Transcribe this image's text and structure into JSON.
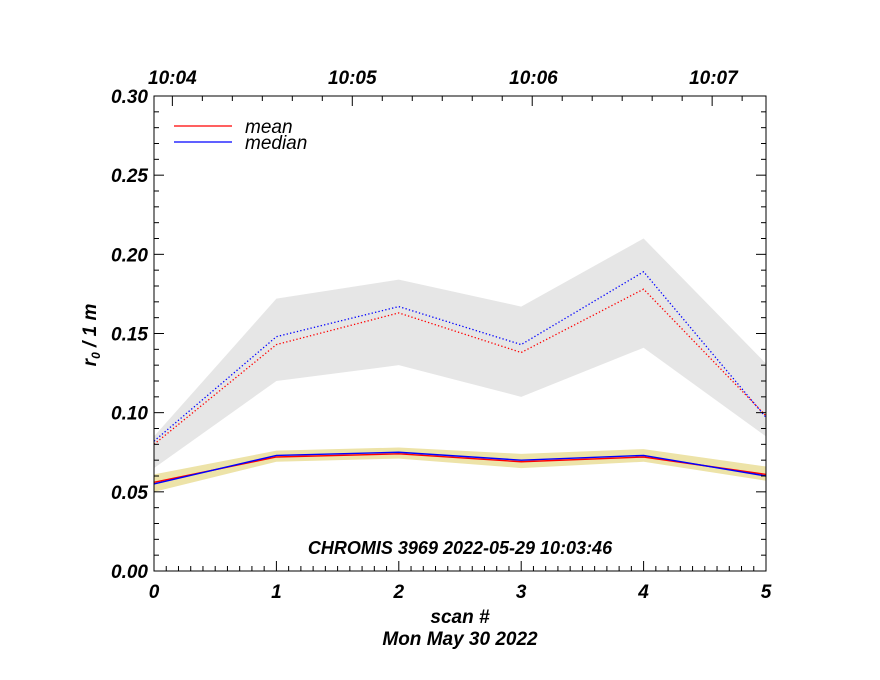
{
  "chart_data": {
    "type": "line",
    "x_label": "scan #",
    "date_label": "Mon May 30 2022",
    "y_label_main": "r",
    "y_label_sub": "0",
    "y_label_rest": " / 1 m",
    "annotation": "CHROMIS 3969 2022-05-29 10:03:46",
    "x_range": [
      0,
      5
    ],
    "y_range": [
      0.0,
      0.3
    ],
    "x_ticks": [
      "0",
      "1",
      "2",
      "3",
      "4",
      "5"
    ],
    "y_ticks": [
      "0.00",
      "0.05",
      "0.10",
      "0.15",
      "0.20",
      "0.25",
      "0.30"
    ],
    "top_axis_labels": [
      {
        "label": "10:04",
        "x": 0.15
      },
      {
        "label": "10:05",
        "x": 1.62
      },
      {
        "label": "10:06",
        "x": 3.1
      },
      {
        "label": "10:07",
        "x": 4.57
      }
    ],
    "x": [
      0,
      1,
      2,
      3,
      4,
      5
    ],
    "legend": [
      {
        "label": "mean",
        "color": "#ff0000"
      },
      {
        "label": "median",
        "color": "#0000ff"
      }
    ],
    "bands": [
      {
        "name": "upper-spread",
        "color": "#e6e6e6",
        "lower": [
          0.065,
          0.12,
          0.13,
          0.11,
          0.141,
          0.085
        ],
        "upper": [
          0.085,
          0.172,
          0.184,
          0.167,
          0.21,
          0.131
        ]
      },
      {
        "name": "lower-spread",
        "color": "#ede3a8",
        "lower": [
          0.05,
          0.069,
          0.071,
          0.065,
          0.069,
          0.057
        ],
        "upper": [
          0.061,
          0.076,
          0.078,
          0.074,
          0.077,
          0.066
        ]
      }
    ],
    "series": [
      {
        "name": "mean",
        "group": "upper",
        "color": "#ff0000",
        "style": "dotted",
        "values": [
          0.08,
          0.143,
          0.163,
          0.138,
          0.178,
          0.098
        ]
      },
      {
        "name": "median",
        "group": "upper",
        "color": "#0000ff",
        "style": "dotted",
        "values": [
          0.082,
          0.148,
          0.167,
          0.143,
          0.189,
          0.097
        ]
      },
      {
        "name": "mean",
        "group": "lower",
        "color": "#ff0000",
        "style": "solid",
        "values": [
          0.056,
          0.072,
          0.074,
          0.069,
          0.072,
          0.061
        ]
      },
      {
        "name": "median",
        "group": "lower",
        "color": "#0000ff",
        "style": "solid",
        "values": [
          0.055,
          0.073,
          0.075,
          0.07,
          0.073,
          0.06
        ]
      }
    ]
  }
}
